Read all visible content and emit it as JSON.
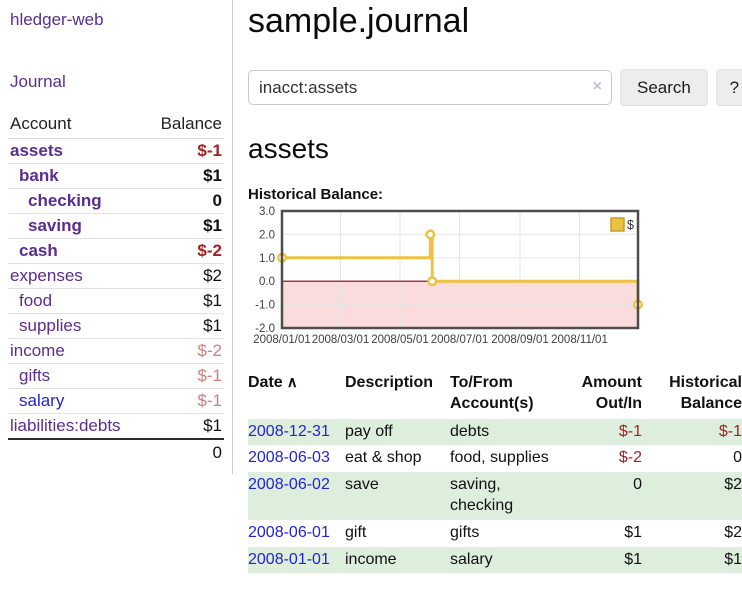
{
  "colors": {
    "purple_link": "#5c2d91",
    "blue_link": "#2323d6",
    "negative_dark": "#a22222",
    "negative_rose": "#c9807f",
    "row_green": "#ddeedd",
    "chart_gold": "#edc240",
    "chart_negative_fill": "#fbdcdc",
    "chart_zero_line": "#8b0000"
  },
  "sidebar": {
    "app_title": "hledger-web",
    "nav": {
      "journal_label": "Journal"
    },
    "accounts_table": {
      "headers": {
        "account": "Account",
        "balance": "Balance"
      },
      "rows": [
        {
          "name": "assets",
          "level": 1,
          "bold": true,
          "link_style": "purple",
          "balance": "$-1",
          "balance_style": "neg-dark"
        },
        {
          "name": "bank",
          "level": 2,
          "bold": true,
          "link_style": "purple",
          "balance": "$1",
          "balance_style": "pos"
        },
        {
          "name": "checking",
          "level": 3,
          "bold": true,
          "link_style": "purple",
          "balance": "0",
          "balance_style": "pos"
        },
        {
          "name": "saving",
          "level": 3,
          "bold": true,
          "link_style": "purple",
          "balance": "$1",
          "balance_style": "pos"
        },
        {
          "name": "cash",
          "level": 2,
          "bold": true,
          "link_style": "purple",
          "balance": "$-2",
          "balance_style": "neg-dark"
        },
        {
          "name": "expenses",
          "level": 1,
          "bold": false,
          "link_style": "purple",
          "balance": "$2",
          "balance_style": "pos"
        },
        {
          "name": "food",
          "level": 2,
          "bold": false,
          "link_style": "purple",
          "balance": "$1",
          "balance_style": "pos"
        },
        {
          "name": "supplies",
          "level": 2,
          "bold": false,
          "link_style": "purple",
          "balance": "$1",
          "balance_style": "pos"
        },
        {
          "name": "income",
          "level": 1,
          "bold": false,
          "link_style": "purple",
          "balance": "$-2",
          "balance_style": "neg-rose"
        },
        {
          "name": "gifts",
          "level": 2,
          "bold": false,
          "link_style": "purple",
          "balance": "$-1",
          "balance_style": "neg-rose"
        },
        {
          "name": "salary",
          "level": 2,
          "bold": false,
          "link_style": "blue",
          "balance": "$-1",
          "balance_style": "neg-rose"
        },
        {
          "name": "liabilities:debts",
          "level": 1,
          "bold": false,
          "link_style": "purple",
          "balance": "$1",
          "balance_style": "pos"
        }
      ],
      "total": "0"
    }
  },
  "main": {
    "title": "sample.journal",
    "search": {
      "value": "inacct:assets",
      "clear_icon": "×",
      "button_label": "Search",
      "help_label": "?"
    },
    "account_heading": "assets",
    "chart_label": "Historical Balance:",
    "register": {
      "headers": {
        "date": "Date",
        "sort_icon": "∧",
        "description": "Description",
        "accounts": "To/From Account(s)",
        "amount": "Amount Out/In",
        "balance": "Historical Balance"
      },
      "rows": [
        {
          "date": "2008-12-31",
          "description": "pay off",
          "accounts": "debts",
          "amount": "$-1",
          "amount_negative": true,
          "balance": "$-1",
          "balance_negative": true
        },
        {
          "date": "2008-06-03",
          "description": "eat & shop",
          "accounts": "food, supplies",
          "amount": "$-2",
          "amount_negative": true,
          "balance": "0",
          "balance_negative": false
        },
        {
          "date": "2008-06-02",
          "description": "save",
          "accounts": "saving, checking",
          "amount": "0",
          "amount_negative": false,
          "balance": "$2",
          "balance_negative": false
        },
        {
          "date": "2008-06-01",
          "description": "gift",
          "accounts": "gifts",
          "amount": "$1",
          "amount_negative": false,
          "balance": "$2",
          "balance_negative": false
        },
        {
          "date": "2008-01-01",
          "description": "income",
          "accounts": "salary",
          "amount": "$1",
          "amount_negative": false,
          "balance": "$1",
          "balance_negative": false
        }
      ]
    }
  },
  "chart_data": {
    "type": "line",
    "style": "step",
    "title": "Historical Balance",
    "legend": {
      "label": "$",
      "position": "top-right"
    },
    "series": [
      {
        "name": "$",
        "color": "#edc240",
        "points": [
          {
            "date": "2008-01-01",
            "day": 0,
            "value": 1
          },
          {
            "date": "2008-06-01",
            "day": 152,
            "value": 2
          },
          {
            "date": "2008-06-03",
            "day": 154,
            "value": 0
          },
          {
            "date": "2008-12-31",
            "day": 365,
            "value": -1
          }
        ]
      }
    ],
    "ylim": [
      -2,
      3
    ],
    "x_range_days": 365,
    "grid": true,
    "yticks": [
      {
        "value": 3,
        "label": "3.0"
      },
      {
        "value": 2,
        "label": "2.0"
      },
      {
        "value": 1,
        "label": "1.0"
      },
      {
        "value": 0,
        "label": "0.0"
      },
      {
        "value": -1,
        "label": "-1.0"
      },
      {
        "value": -2,
        "label": "-2.0"
      }
    ],
    "xticks": [
      {
        "day": 0,
        "label": "2008/01/01"
      },
      {
        "day": 60,
        "label": "2008/03/01"
      },
      {
        "day": 121,
        "label": "2008/05/01"
      },
      {
        "day": 182,
        "label": "2008/07/01"
      },
      {
        "day": 244,
        "label": "2008/09/01"
      },
      {
        "day": 305,
        "label": "2008/11/01"
      }
    ],
    "negative_fill": "#fbdcdc",
    "zero_line_color": "#8b0000"
  }
}
